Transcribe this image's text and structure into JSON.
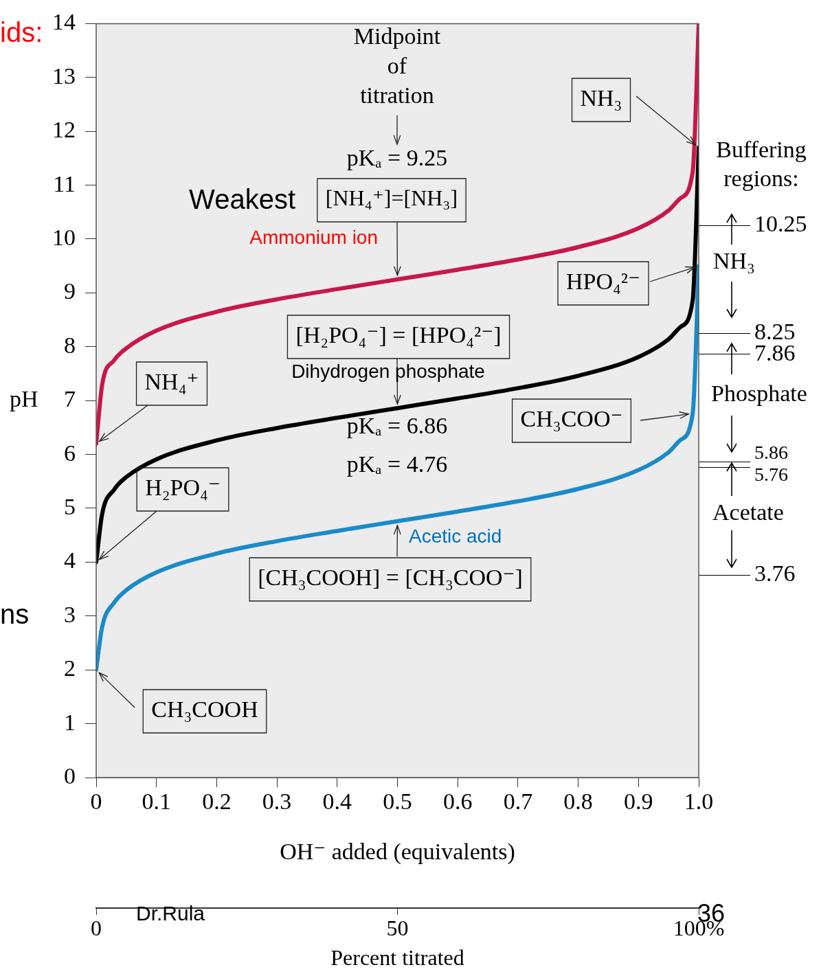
{
  "chart_data": {
    "type": "line",
    "xlabel": "OH⁻ added (equivalents)",
    "ylabel": "pH",
    "x2label": "Percent titrated",
    "xlim": [
      0,
      1
    ],
    "xticks": [
      0,
      0.1,
      0.2,
      0.3,
      0.4,
      0.5,
      0.6,
      0.7,
      0.8,
      0.9,
      {
        "value": 1,
        "label": "1.0"
      }
    ],
    "x2lim": [
      0,
      100
    ],
    "x2ticks": [
      0,
      50,
      {
        "value": 100,
        "label": "100%"
      }
    ],
    "ylim": [
      0,
      14
    ],
    "yticks": [
      0,
      1,
      2,
      3,
      4,
      5,
      6,
      7,
      8,
      9,
      10,
      11,
      12,
      13,
      14
    ],
    "grid": false,
    "legend": false,
    "marker": "none",
    "line_style": "solid",
    "x": [
      0,
      0.01,
      0.03,
      0.05,
      0.1,
      0.2,
      0.3,
      0.4,
      0.5,
      0.6,
      0.7,
      0.8,
      0.9,
      0.95,
      0.97,
      0.99,
      1.0
    ],
    "series": [
      {
        "color": "#c8174a",
        "values": [
          6.2,
          7.3,
          7.75,
          7.97,
          8.3,
          8.65,
          8.88,
          9.07,
          9.25,
          9.43,
          9.62,
          9.85,
          10.2,
          10.53,
          10.76,
          11.25,
          14
        ]
      },
      {
        "color": "#000000",
        "values": [
          4.0,
          4.9,
          5.35,
          5.58,
          5.91,
          6.26,
          6.49,
          6.68,
          6.86,
          7.04,
          7.23,
          7.46,
          7.81,
          8.14,
          8.37,
          8.86,
          11.7
        ]
      },
      {
        "color": "#1a8ac8",
        "values": [
          2.0,
          2.8,
          3.25,
          3.48,
          3.81,
          4.16,
          4.39,
          4.58,
          4.76,
          4.94,
          5.13,
          5.36,
          5.71,
          6.04,
          6.27,
          6.76,
          9.5
        ]
      }
    ],
    "y2lim": [
      0,
      14
    ],
    "y2ticks": [
      3.76,
      5.76,
      5.86,
      7.86,
      8.25,
      10.25
    ],
    "annotations": [
      "ids:",
      "ns",
      "Midpoint of titration",
      "pKₐ = 9.25",
      {
        "text": "[NH₄⁺]=[NH₃]",
        "x": 0.5,
        "y": 9.25
      },
      "Weakest",
      "Ammonium ion",
      {
        "text": "NH₃",
        "x": 1.0,
        "y": 11.7
      },
      {
        "text": "HPO₄²⁻",
        "x": 1.0,
        "y": 9.5
      },
      {
        "text": "[H₂PO₄⁻] = [HPO₄²⁻]",
        "x": 0.5,
        "y": 6.86
      },
      "Dihydrogen phosphate",
      {
        "text": "NH₄⁺",
        "x": 0,
        "y": 6.2
      },
      "pKₐ = 6.86",
      {
        "text": "CH₃COO⁻",
        "x": 0.99,
        "y": 6.76
      },
      "pKₐ = 4.76",
      {
        "text": "H₂PO₄⁻",
        "x": 0,
        "y": 4.0
      },
      "Acetic acid",
      {
        "text": "[CH₃COOH] = [CH₃COO⁻]",
        "x": 0.5,
        "y": 4.76
      },
      {
        "text": "CH₃COOH",
        "x": 0,
        "y": 2.0
      },
      "Buffering regions:",
      "Dr.Rula",
      "36",
      "NH₃",
      "Phosphate",
      "Acetate"
    ]
  }
}
